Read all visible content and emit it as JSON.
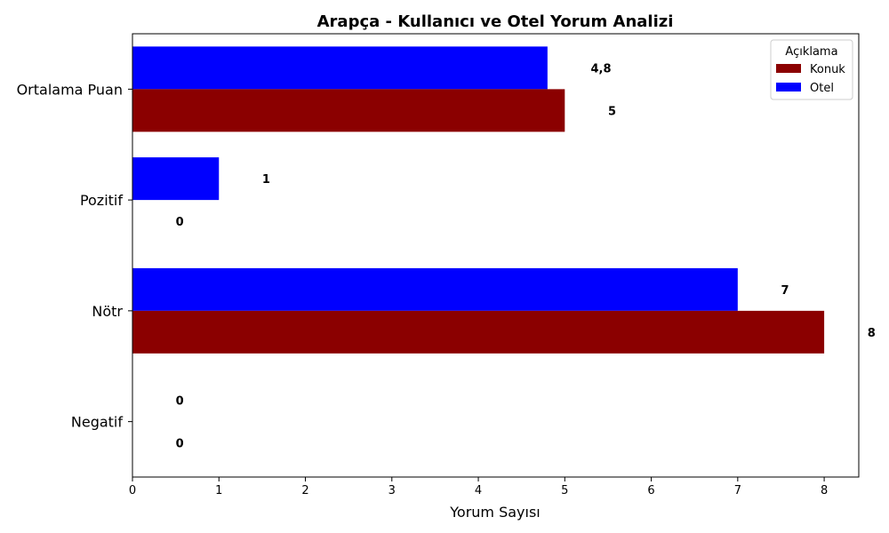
{
  "chart_data": {
    "type": "bar",
    "orientation": "horizontal",
    "title": "Arapça - Kullanıcı ve Otel Yorum Analizi",
    "xlabel": "Yorum Sayısı",
    "ylabel": "",
    "xlim": [
      0,
      8.4
    ],
    "x_ticks": [
      "0",
      "1",
      "2",
      "3",
      "4",
      "5",
      "6",
      "7",
      "8"
    ],
    "categories": [
      "Ortalama Puan",
      "Pozitif",
      "Nötr",
      "Negatif"
    ],
    "series": [
      {
        "name": "Otel",
        "color": "#0000ff",
        "values": [
          4.8,
          1,
          7,
          0
        ],
        "labels": [
          "4,8",
          "1",
          "7",
          "0"
        ]
      },
      {
        "name": "Konuk",
        "color": "#8b0000",
        "values": [
          5,
          0,
          8,
          0
        ],
        "labels": [
          "5",
          "0",
          "8",
          "0"
        ]
      }
    ],
    "legend": {
      "title": "Açıklama",
      "placement": "top-right",
      "entries": [
        "Konuk",
        "Otel"
      ]
    },
    "grid": false
  }
}
